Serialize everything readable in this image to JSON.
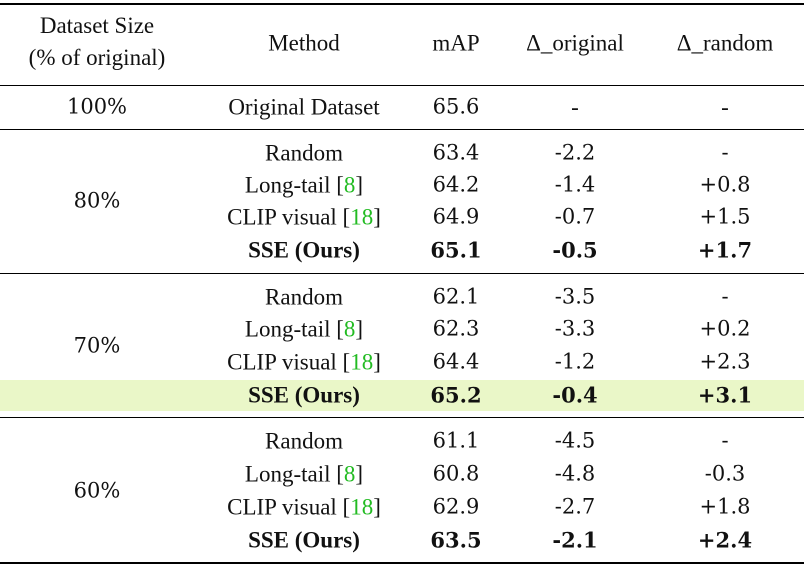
{
  "header": {
    "dataset_size_line1": "Dataset Size",
    "dataset_size_line2": "(% of original)",
    "method": "Method",
    "map": "mAP",
    "delta_original": "Δ_original",
    "delta_random": "Δ_random"
  },
  "original": {
    "size": "100%",
    "method": "Original Dataset",
    "map": "65.6",
    "d_orig": "-",
    "d_rand": "-"
  },
  "groups": [
    {
      "size": "80%",
      "rows": [
        {
          "method": "Random",
          "cite": "",
          "map": "63.4",
          "d_orig": "-2.2",
          "d_rand": "-"
        },
        {
          "method": "Long-tail [",
          "cite": "8",
          "close": "]",
          "map": "64.2",
          "d_orig": "-1.4",
          "d_rand": "+0.8"
        },
        {
          "method": "CLIP visual [",
          "cite": "18",
          "close": "]",
          "map": "64.9",
          "d_orig": "-0.7",
          "d_rand": "+1.5"
        },
        {
          "method": "SSE (Ours)",
          "cite": "",
          "map": "65.1",
          "d_orig": "-0.5",
          "d_rand": "+1.7"
        }
      ]
    },
    {
      "size": "70%",
      "rows": [
        {
          "method": "Random",
          "cite": "",
          "map": "62.1",
          "d_orig": "-3.5",
          "d_rand": "-"
        },
        {
          "method": "Long-tail [",
          "cite": "8",
          "close": "]",
          "map": "62.3",
          "d_orig": "-3.3",
          "d_rand": "+0.2"
        },
        {
          "method": "CLIP visual [",
          "cite": "18",
          "close": "]",
          "map": "64.4",
          "d_orig": "-1.2",
          "d_rand": "+2.3"
        },
        {
          "method": "SSE (Ours)",
          "cite": "",
          "map": "65.2",
          "d_orig": "-0.4",
          "d_rand": "+3.1"
        }
      ]
    },
    {
      "size": "60%",
      "rows": [
        {
          "method": "Random",
          "cite": "",
          "map": "61.1",
          "d_orig": "-4.5",
          "d_rand": "-"
        },
        {
          "method": "Long-tail [",
          "cite": "8",
          "close": "]",
          "map": "60.8",
          "d_orig": "-4.8",
          "d_rand": "-0.3"
        },
        {
          "method": "CLIP visual [",
          "cite": "18",
          "close": "]",
          "map": "62.9",
          "d_orig": "-2.7",
          "d_rand": "+1.8"
        },
        {
          "method": "SSE (Ours)",
          "cite": "",
          "map": "63.5",
          "d_orig": "-2.1",
          "d_rand": "+2.4"
        }
      ]
    }
  ],
  "colors": {
    "highlight_row": "#eaf7c8",
    "citation": "#22bb22"
  }
}
